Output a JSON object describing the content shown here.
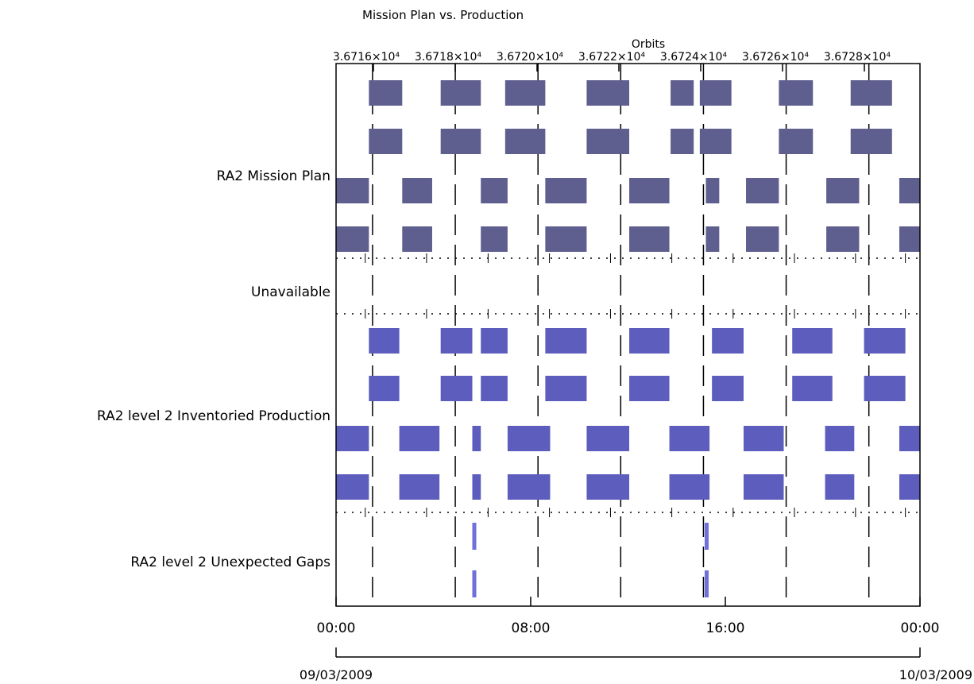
{
  "chart_data": {
    "type": "timeline",
    "title": "Mission Plan vs. Production",
    "top_axis": {
      "label": "Orbits",
      "ticks": [
        "3.6716×10⁴",
        "3.6718×10⁴",
        "3.6720×10⁴",
        "3.6722×10⁴",
        "3.6724×10⁴",
        "3.6726×10⁴",
        "3.6728×10⁴"
      ],
      "tick_hours": [
        1.2,
        3.72,
        6.25,
        8.77,
        11.28,
        13.8,
        16.32,
        18.84,
        21.35,
        23.4
      ]
    },
    "x_axis": {
      "range_hours": [
        0,
        24
      ],
      "ticks": [
        {
          "hour": 0,
          "label": "00:00"
        },
        {
          "hour": 8,
          "label": "08:00"
        },
        {
          "hour": 16,
          "label": "16:00"
        },
        {
          "hour": 24,
          "label": "00:00"
        }
      ],
      "start_date": "09/03/2009",
      "end_date": "10/03/2009"
    },
    "categories": [
      {
        "name": "RA2 Mission Plan",
        "color": "#5e5e8f"
      },
      {
        "name": "Unavailable",
        "color": "#5e5e8f"
      },
      {
        "name": "RA2 level 2 Inventoried Production",
        "color": "#5d5dbd"
      },
      {
        "name": "RA2 level 2 Unexpected Gaps",
        "color": "#7070d8"
      }
    ],
    "series": [
      {
        "category": 0,
        "row": 0,
        "segments": [
          [
            1.35,
            2.72
          ],
          [
            4.3,
            5.95
          ],
          [
            6.95,
            8.6
          ],
          [
            10.3,
            12.05
          ],
          [
            13.75,
            14.7
          ],
          [
            14.95,
            16.25
          ],
          [
            18.2,
            19.6
          ],
          [
            21.15,
            22.85
          ]
        ]
      },
      {
        "category": 0,
        "row": 1,
        "segments": [
          [
            1.35,
            2.72
          ],
          [
            4.3,
            5.95
          ],
          [
            6.95,
            8.6
          ],
          [
            10.3,
            12.05
          ],
          [
            13.75,
            14.7
          ],
          [
            14.95,
            16.25
          ],
          [
            18.2,
            19.6
          ],
          [
            21.15,
            22.85
          ]
        ]
      },
      {
        "category": 0,
        "row": 2,
        "segments": [
          [
            0,
            1.35
          ],
          [
            2.72,
            3.95
          ],
          [
            5.95,
            7.05
          ],
          [
            8.6,
            10.3
          ],
          [
            12.05,
            13.7
          ],
          [
            15.2,
            15.75
          ],
          [
            16.85,
            18.2
          ],
          [
            20.15,
            21.5
          ],
          [
            23.15,
            24
          ]
        ]
      },
      {
        "category": 0,
        "row": 3,
        "segments": [
          [
            0,
            1.35
          ],
          [
            2.72,
            3.95
          ],
          [
            5.95,
            7.05
          ],
          [
            8.6,
            10.3
          ],
          [
            12.05,
            13.7
          ],
          [
            15.2,
            15.75
          ],
          [
            16.85,
            18.2
          ],
          [
            20.15,
            21.5
          ],
          [
            23.15,
            24
          ]
        ]
      },
      {
        "category": 2,
        "row": 0,
        "segments": [
          [
            1.35,
            2.6
          ],
          [
            4.3,
            5.6
          ],
          [
            5.95,
            7.05
          ],
          [
            8.6,
            10.3
          ],
          [
            12.05,
            13.7
          ],
          [
            15.45,
            16.75
          ],
          [
            18.75,
            20.4
          ],
          [
            21.7,
            23.4
          ]
        ]
      },
      {
        "category": 2,
        "row": 1,
        "segments": [
          [
            1.35,
            2.6
          ],
          [
            4.3,
            5.6
          ],
          [
            5.95,
            7.05
          ],
          [
            8.6,
            10.3
          ],
          [
            12.05,
            13.7
          ],
          [
            15.45,
            16.75
          ],
          [
            18.75,
            20.4
          ],
          [
            21.7,
            23.4
          ]
        ]
      },
      {
        "category": 2,
        "row": 2,
        "segments": [
          [
            0,
            1.35
          ],
          [
            2.6,
            4.25
          ],
          [
            5.6,
            5.95
          ],
          [
            7.05,
            8.8
          ],
          [
            10.3,
            12.05
          ],
          [
            13.7,
            15.35
          ],
          [
            16.75,
            18.4
          ],
          [
            20.1,
            21.3
          ],
          [
            23.15,
            24
          ]
        ]
      },
      {
        "category": 2,
        "row": 3,
        "segments": [
          [
            0,
            1.35
          ],
          [
            2.6,
            4.25
          ],
          [
            5.6,
            5.95
          ],
          [
            7.05,
            8.8
          ],
          [
            10.3,
            12.05
          ],
          [
            13.7,
            15.35
          ],
          [
            16.75,
            18.4
          ],
          [
            20.1,
            21.3
          ],
          [
            23.15,
            24
          ]
        ]
      },
      {
        "category": 3,
        "row": 0,
        "segments": [
          [
            5.6,
            5.72
          ],
          [
            15.15,
            15.25
          ]
        ]
      },
      {
        "category": 3,
        "row": 1,
        "segments": [
          [
            5.6,
            5.72
          ],
          [
            15.15,
            15.25
          ]
        ]
      }
    ],
    "dashed_lines_hours": [
      1.5,
      4.9,
      8.3,
      11.7,
      15.1,
      18.5,
      21.9
    ]
  }
}
